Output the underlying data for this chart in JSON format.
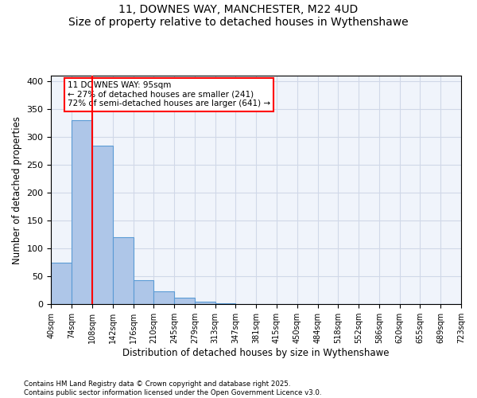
{
  "title_line1": "11, DOWNES WAY, MANCHESTER, M22 4UD",
  "title_line2": "Size of property relative to detached houses in Wythenshawe",
  "xlabel": "Distribution of detached houses by size in Wythenshawe",
  "ylabel": "Number of detached properties",
  "bar_values": [
    75,
    330,
    285,
    120,
    43,
    23,
    12,
    5,
    2,
    1,
    0,
    0,
    0,
    0,
    0,
    0,
    0,
    0,
    0,
    0
  ],
  "bin_labels": [
    "40sqm",
    "74sqm",
    "108sqm",
    "142sqm",
    "176sqm",
    "210sqm",
    "245sqm",
    "279sqm",
    "313sqm",
    "347sqm",
    "381sqm",
    "415sqm",
    "450sqm",
    "484sqm",
    "518sqm",
    "552sqm",
    "586sqm",
    "620sqm",
    "655sqm",
    "689sqm",
    "723sqm"
  ],
  "bar_color": "#aec6e8",
  "bar_edge_color": "#5b9bd5",
  "grid_color": "#d0d8e8",
  "background_color": "#f0f4fb",
  "annotation_text": "11 DOWNES WAY: 95sqm\n← 27% of detached houses are smaller (241)\n72% of semi-detached houses are larger (641) →",
  "annotation_box_color": "white",
  "annotation_box_edge": "red",
  "footer_line1": "Contains HM Land Registry data © Crown copyright and database right 2025.",
  "footer_line2": "Contains public sector information licensed under the Open Government Licence v3.0.",
  "ylim": [
    0,
    410
  ],
  "yticks": [
    0,
    50,
    100,
    150,
    200,
    250,
    300,
    350,
    400
  ]
}
